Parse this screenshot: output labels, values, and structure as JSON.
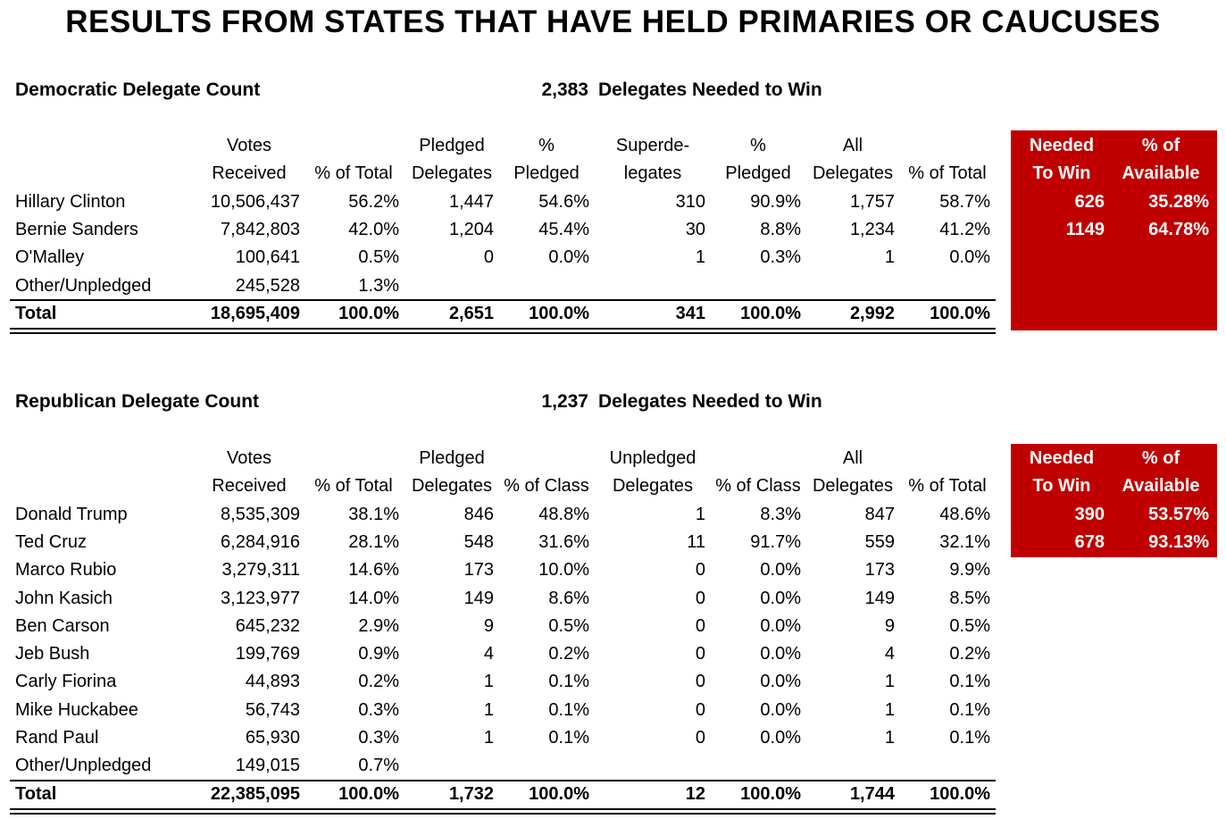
{
  "page_title": "RESULTS FROM STATES THAT HAVE HELD PRIMARIES OR CAUCUSES",
  "colors": {
    "accent_red": "#c00000",
    "text": "#000000"
  },
  "democratic": {
    "label": "Democratic Delegate Count",
    "needed_number": "2,383",
    "needed_text": "Delegates Needed to Win",
    "headers_top": [
      "Votes",
      "",
      "Pledged",
      "%",
      "Superde-",
      "%",
      "All",
      ""
    ],
    "headers_bottom": [
      "Received",
      "% of Total",
      "Delegates",
      "Pledged",
      "legates",
      "Pledged",
      "Delegates",
      "% of Total"
    ],
    "rows": [
      {
        "name": "Hillary Clinton",
        "cells": [
          "10,506,437",
          "56.2%",
          "1,447",
          "54.6%",
          "310",
          "90.9%",
          "1,757",
          "58.7%"
        ]
      },
      {
        "name": "Bernie Sanders",
        "cells": [
          "7,842,803",
          "42.0%",
          "1,204",
          "45.4%",
          "30",
          "8.8%",
          "1,234",
          "41.2%"
        ]
      },
      {
        "name": "O'Malley",
        "cells": [
          "100,641",
          "0.5%",
          "0",
          "0.0%",
          "1",
          "0.3%",
          "1",
          "0.0%"
        ]
      },
      {
        "name": "Other/Unpledged",
        "cells": [
          "245,528",
          "1.3%",
          "",
          "",
          "",
          "",
          "",
          ""
        ]
      }
    ],
    "total": {
      "name": "Total",
      "cells": [
        "18,695,409",
        "100.0%",
        "2,651",
        "100.0%",
        "341",
        "100.0%",
        "2,992",
        "100.0%"
      ]
    },
    "side": {
      "headers_top": [
        "Needed",
        "% of"
      ],
      "headers_bottom": [
        "To Win",
        "Available"
      ],
      "rows": [
        [
          "626",
          "35.28%"
        ],
        [
          "1149",
          "64.78%"
        ]
      ]
    }
  },
  "republican": {
    "label": "Republican Delegate Count",
    "needed_number": "1,237",
    "needed_text": "Delegates Needed to Win",
    "headers_top": [
      "Votes",
      "",
      "Pledged",
      "",
      "Unpledged",
      "",
      "All",
      ""
    ],
    "headers_bottom": [
      "Received",
      "% of Total",
      "Delegates",
      "% of Class",
      "Delegates",
      "% of Class",
      "Delegates",
      "% of Total"
    ],
    "rows": [
      {
        "name": "Donald Trump",
        "cells": [
          "8,535,309",
          "38.1%",
          "846",
          "48.8%",
          "1",
          "8.3%",
          "847",
          "48.6%"
        ]
      },
      {
        "name": "Ted Cruz",
        "cells": [
          "6,284,916",
          "28.1%",
          "548",
          "31.6%",
          "11",
          "91.7%",
          "559",
          "32.1%"
        ]
      },
      {
        "name": "Marco Rubio",
        "cells": [
          "3,279,311",
          "14.6%",
          "173",
          "10.0%",
          "0",
          "0.0%",
          "173",
          "9.9%"
        ]
      },
      {
        "name": "John Kasich",
        "cells": [
          "3,123,977",
          "14.0%",
          "149",
          "8.6%",
          "0",
          "0.0%",
          "149",
          "8.5%"
        ]
      },
      {
        "name": "Ben Carson",
        "cells": [
          "645,232",
          "2.9%",
          "9",
          "0.5%",
          "0",
          "0.0%",
          "9",
          "0.5%"
        ]
      },
      {
        "name": "Jeb Bush",
        "cells": [
          "199,769",
          "0.9%",
          "4",
          "0.2%",
          "0",
          "0.0%",
          "4",
          "0.2%"
        ]
      },
      {
        "name": "Carly Fiorina",
        "cells": [
          "44,893",
          "0.2%",
          "1",
          "0.1%",
          "0",
          "0.0%",
          "1",
          "0.1%"
        ]
      },
      {
        "name": "Mike Huckabee",
        "cells": [
          "56,743",
          "0.3%",
          "1",
          "0.1%",
          "0",
          "0.0%",
          "1",
          "0.1%"
        ]
      },
      {
        "name": "Rand Paul",
        "cells": [
          "65,930",
          "0.3%",
          "1",
          "0.1%",
          "0",
          "0.0%",
          "1",
          "0.1%"
        ]
      },
      {
        "name": "Other/Unpledged",
        "cells": [
          "149,015",
          "0.7%",
          "",
          "",
          "",
          "",
          "",
          ""
        ]
      }
    ],
    "total": {
      "name": "Total",
      "cells": [
        "22,385,095",
        "100.0%",
        "1,732",
        "100.0%",
        "12",
        "100.0%",
        "1,744",
        "100.0%"
      ]
    },
    "side": {
      "headers_top": [
        "Needed",
        "% of"
      ],
      "headers_bottom": [
        "To Win",
        "Available"
      ],
      "rows": [
        [
          "390",
          "53.57%"
        ],
        [
          "678",
          "93.13%"
        ]
      ]
    }
  }
}
